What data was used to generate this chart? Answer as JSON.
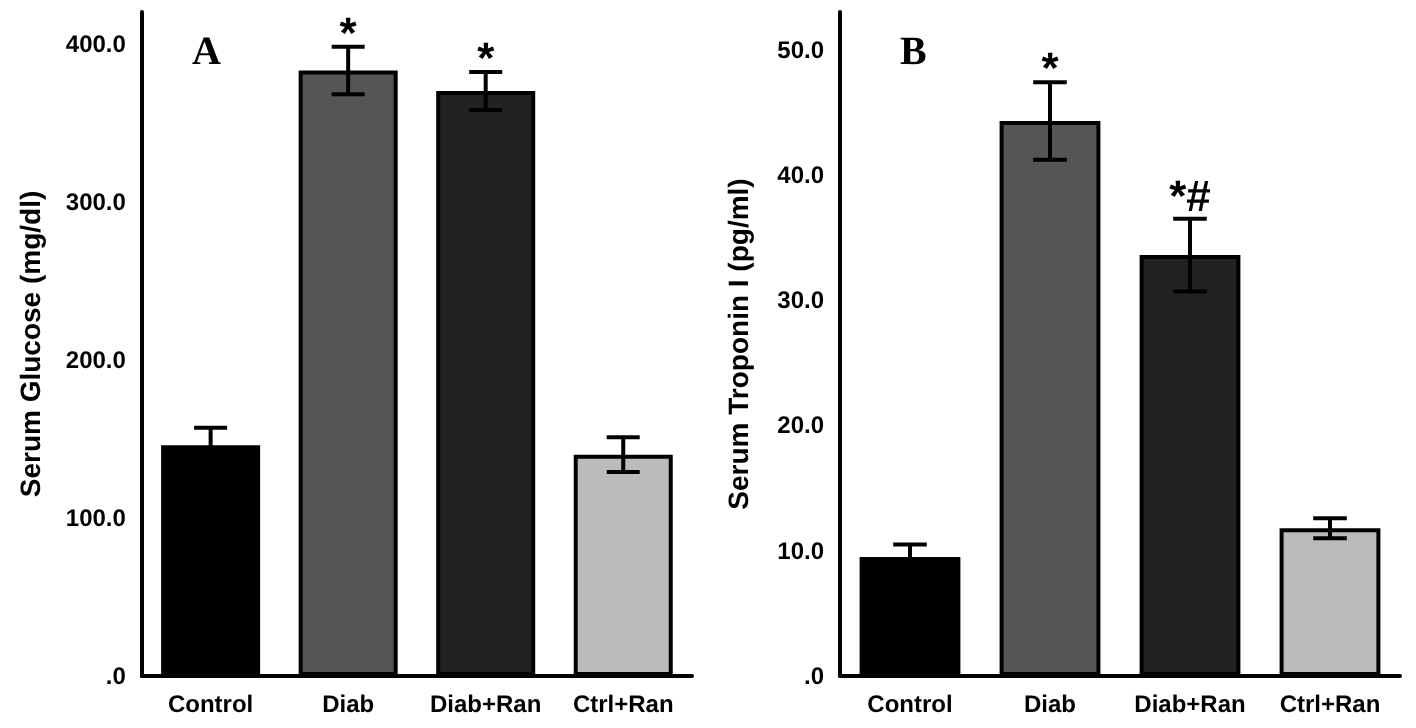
{
  "chart_data": [
    {
      "type": "bar",
      "ylabel": "Serum Glucose (mg/dl)",
      "categories": [
        "Control",
        "Diab",
        "Diab+Ran",
        "Ctrl+Ran"
      ],
      "values": [
        146,
        383,
        370,
        140
      ],
      "errors": [
        11,
        15,
        12,
        11
      ],
      "colors": [
        "#000000",
        "#555555",
        "#222222",
        "#bbbbbb"
      ],
      "ylim": [
        0,
        420
      ],
      "yticks": [
        {
          "value": 0,
          "label": ".0"
        },
        {
          "value": 100,
          "label": "100.0"
        },
        {
          "value": 200,
          "label": "200.0"
        },
        {
          "value": 300,
          "label": "300.0"
        },
        {
          "value": 400,
          "label": "400.0"
        }
      ],
      "annotations": [
        "A",
        {
          "text": "*",
          "x": "Diab",
          "y": 398
        },
        {
          "text": "*",
          "x": "Diab+Ran",
          "y": 382
        }
      ]
    },
    {
      "type": "bar",
      "ylabel": "Serum Troponin I (pg/ml)",
      "categories": [
        "Control",
        "Diab",
        "Diab+Ran",
        "Ctrl+Ran"
      ],
      "values": [
        9.5,
        44.3,
        33.6,
        11.8
      ],
      "errors": [
        1.0,
        3.1,
        2.9,
        0.8
      ],
      "colors": [
        "#000000",
        "#555555",
        "#222222",
        "#bbbbbb"
      ],
      "ylim": [
        0,
        53
      ],
      "yticks": [
        {
          "value": 0,
          "label": ".0"
        },
        {
          "value": 10,
          "label": "10.0"
        },
        {
          "value": 20,
          "label": "20.0"
        },
        {
          "value": 30,
          "label": "30.0"
        },
        {
          "value": 40,
          "label": "40.0"
        },
        {
          "value": 50,
          "label": "50.0"
        }
      ],
      "annotations": [
        "B",
        {
          "text": "*",
          "x": "Diab",
          "y": 47.4
        },
        {
          "text": "*#",
          "x": "Diab+Ran",
          "y": 37.2
        }
      ]
    }
  ]
}
